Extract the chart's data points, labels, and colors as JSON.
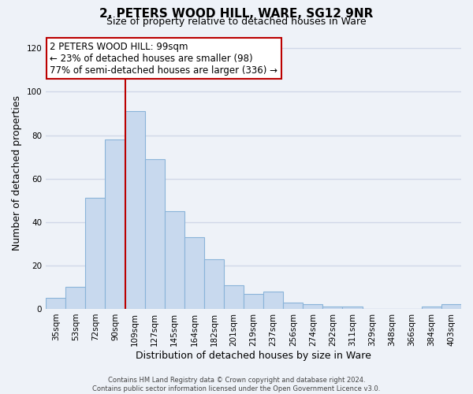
{
  "title": "2, PETERS WOOD HILL, WARE, SG12 9NR",
  "subtitle": "Size of property relative to detached houses in Ware",
  "xlabel": "Distribution of detached houses by size in Ware",
  "ylabel": "Number of detached properties",
  "bar_labels": [
    "35sqm",
    "53sqm",
    "72sqm",
    "90sqm",
    "109sqm",
    "127sqm",
    "145sqm",
    "164sqm",
    "182sqm",
    "201sqm",
    "219sqm",
    "237sqm",
    "256sqm",
    "274sqm",
    "292sqm",
    "311sqm",
    "329sqm",
    "348sqm",
    "366sqm",
    "384sqm",
    "403sqm"
  ],
  "bar_values": [
    5,
    10,
    51,
    78,
    91,
    69,
    45,
    33,
    23,
    11,
    7,
    8,
    3,
    2,
    1,
    1,
    0,
    0,
    0,
    1,
    2
  ],
  "bar_color": "#c8d9ee",
  "bar_edge_color": "#8ab4d9",
  "ylim": [
    0,
    125
  ],
  "yticks": [
    0,
    20,
    40,
    60,
    80,
    100,
    120
  ],
  "vline_color": "#bb0000",
  "annotation_title": "2 PETERS WOOD HILL: 99sqm",
  "annotation_line1": "← 23% of detached houses are smaller (98)",
  "annotation_line2": "77% of semi-detached houses are larger (336) →",
  "annotation_box_color": "#ffffff",
  "annotation_box_edge": "#bb0000",
  "footer1": "Contains HM Land Registry data © Crown copyright and database right 2024.",
  "footer2": "Contains public sector information licensed under the Open Government Licence v3.0.",
  "bg_color": "#eef2f8",
  "plot_bg_color": "#eef2f8",
  "grid_color": "#d0d8e8",
  "title_fontsize": 11,
  "subtitle_fontsize": 9,
  "tick_fontsize": 7.5,
  "axis_label_fontsize": 9,
  "annotation_fontsize": 8.5,
  "footer_fontsize": 6
}
